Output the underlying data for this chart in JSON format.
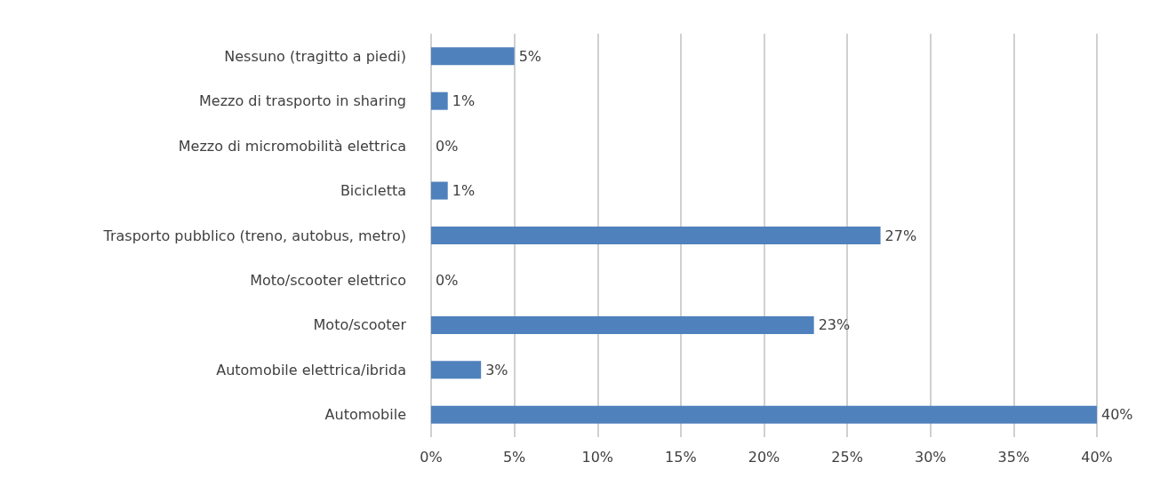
{
  "chart_data": {
    "type": "bar",
    "orientation": "horizontal",
    "categories": [
      "Nessuno (tragitto a piedi)",
      "Mezzo di trasporto in sharing",
      "Mezzo di micromobilità elettrica",
      "Bicicletta",
      "Trasporto pubblico (treno, autobus, metro)",
      "Moto/scooter elettrico",
      "Moto/scooter",
      "Automobile elettrica/ibrida",
      "Automobile"
    ],
    "values": [
      5,
      1,
      0,
      1,
      27,
      0,
      23,
      3,
      40
    ],
    "value_labels": [
      "5%",
      "1%",
      "0%",
      "1%",
      "27%",
      "0%",
      "23%",
      "3%",
      "40%"
    ],
    "color": "#4f81bd",
    "xlim": [
      0,
      40
    ],
    "xticks": [
      {
        "value": 0,
        "label": "0%"
      },
      {
        "value": 5,
        "label": "5%"
      },
      {
        "value": 10,
        "label": "10%"
      },
      {
        "value": 15,
        "label": "15%"
      },
      {
        "value": 20,
        "label": "20%"
      },
      {
        "value": 25,
        "label": "25%"
      },
      {
        "value": 30,
        "label": "30%"
      },
      {
        "value": 35,
        "label": "35%"
      },
      {
        "value": 40,
        "label": "40%"
      }
    ],
    "grid": "x"
  }
}
